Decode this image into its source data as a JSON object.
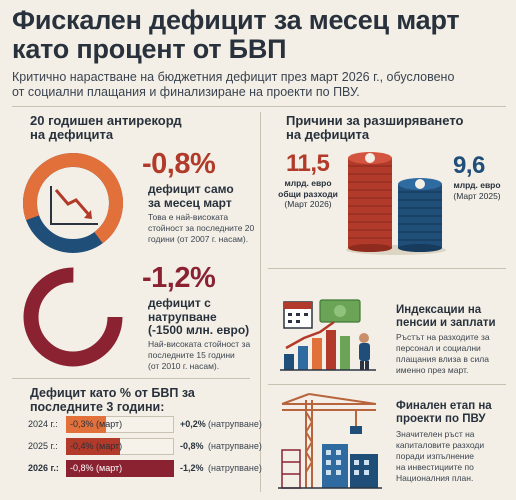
{
  "header": {
    "title_line1": "Фискален дефицит за месец март",
    "title_line2": "като процент от БВП",
    "subtitle_line1": "Критично нарастване на бюджетния дефицит през март 2026 г., обусловено",
    "subtitle_line2": "от социални плащания и финализиране на проекти по ПВУ."
  },
  "left": {
    "heading_line1": "20 годишен антирекорд",
    "heading_line2": "на дефицита",
    "block1": {
      "value": "-0,8%",
      "caption_line1": "дефицит само",
      "caption_line2": "за месец март",
      "note_line1": "Това е най-високата",
      "note_line2": "стойност за последните 20",
      "note_line3": "години (от 2007 г. насам).",
      "icon": "line-chart-down-icon"
    },
    "block2": {
      "value": "-1,2%",
      "caption_line1": "дефицит с",
      "caption_line2": "натрупване",
      "caption_line3": "(-1500 млн. евро)",
      "note_line1": "Най-високата стойност за",
      "note_line2": "последните 15 години",
      "note_line3": "(от 2010 г. насам)."
    },
    "table": {
      "heading_line1": "Дефицит като % от БВП за",
      "heading_line2": "последните 3 години:",
      "rows": [
        {
          "year": "2024 г.:",
          "march": "-0,3% (март)",
          "march_value": -0.3,
          "cumulative": "+0,2%",
          "cumulative_note": "(натрупване)"
        },
        {
          "year": "2025 г.:",
          "march": "-0,4% (март)",
          "march_value": -0.4,
          "cumulative": "-0,8%",
          "cumulative_note": "(натрупване)"
        },
        {
          "year": "2026 г.:",
          "march": "-0,8% (март)",
          "march_value": -0.8,
          "cumulative": "-1,2%",
          "cumulative_note": "(натрупване)"
        }
      ]
    }
  },
  "right": {
    "heading_line1": "Причини за разширяването",
    "heading_line2": "на дефицита",
    "spend_2026": {
      "value": "11,5",
      "line1": "млрд. евро",
      "line2": "общи разходи",
      "line3": "(Март 2026)"
    },
    "spend_2025": {
      "value": "9,6",
      "line1": "млрд. евро",
      "line2": "(Март 2025)"
    },
    "item1": {
      "heading_line1": "Индексации на",
      "heading_line2": "пенсии и заплати",
      "text_line1": "Ръстът на разходите за",
      "text_line2": "персонал и социални",
      "text_line3": "плащания влиза в сила",
      "text_line4": "именно през март."
    },
    "item2": {
      "heading_line1": "Финален етап на",
      "heading_line2": "проекти по ПВУ",
      "text_line1": "Значителен ръст на",
      "text_line2": "капиталовите разходи",
      "text_line3": "поради изпълнение",
      "text_line4": "на инвестициите по",
      "text_line5": "Националния план."
    }
  },
  "colors": {
    "accent_red": "#b23a2a",
    "accent_orange": "#e2703a",
    "dark_red": "#8a2232",
    "navy": "#1f4e79",
    "background": "#f3efe6"
  }
}
